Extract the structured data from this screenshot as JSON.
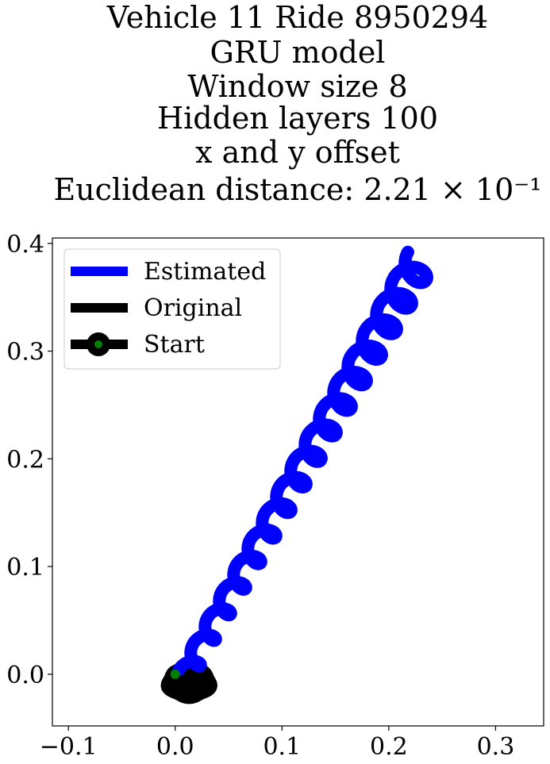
{
  "chart_data": {
    "type": "line",
    "title_lines": [
      "Vehicle 11 Ride 8950294",
      "GRU model",
      "Window size 8",
      "Hidden layers 100",
      "x and y offset",
      "Euclidean distance: 2.21 × 10⁻¹"
    ],
    "xlabel": "",
    "ylabel": "",
    "xlim": [
      -0.115,
      0.345
    ],
    "ylim": [
      -0.048,
      0.405
    ],
    "xticks": [
      -0.1,
      0.0,
      0.1,
      0.2,
      0.3
    ],
    "xtick_labels": [
      "−0.1",
      "0.0",
      "0.1",
      "0.2",
      "0.3"
    ],
    "yticks": [
      0.0,
      0.1,
      0.2,
      0.3,
      0.4
    ],
    "ytick_labels": [
      "0.0",
      "0.1",
      "0.2",
      "0.3",
      "0.4"
    ],
    "grid": false,
    "legend_position": "top-left",
    "series": [
      {
        "name": "Estimated",
        "color": "#0000ff",
        "helix": {
          "start": [
            0.01,
            0.0
          ],
          "end": [
            0.23,
            0.385
          ],
          "turns": 16,
          "amplitude": 0.014
        }
      },
      {
        "name": "Original",
        "color": "#000000",
        "blob": {
          "center": [
            0.013,
            -0.008
          ],
          "rx": 0.02,
          "ry": 0.013
        }
      },
      {
        "name": "Start",
        "color": "#000000",
        "marker_color": "#008000",
        "point": [
          0.0,
          0.0
        ]
      }
    ]
  }
}
